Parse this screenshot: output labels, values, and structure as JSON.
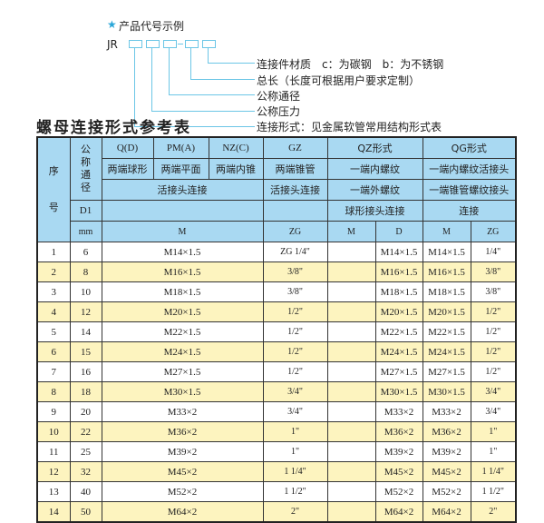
{
  "legend": {
    "star_icon": "star-icon",
    "heading": "产品代号示例",
    "prefix": "JR",
    "items": [
      "连接件材质　c：为碳钢　b：为不锈钢",
      "总长（长度可根据用户要求定制）",
      "公称通径",
      "公称压力",
      "连接形式：见金属软管常用结构形式表"
    ]
  },
  "title": "螺母连接形式参考表",
  "colors": {
    "header": "#a9d9f2",
    "row_alt": "#fdf4bf",
    "line": "#6cc6e6"
  },
  "header": {
    "seq": "序号",
    "nominal": "公称通径",
    "d1": "D1",
    "mm": "mm",
    "q": "Q(D)",
    "pm": "PM(A)",
    "nz": "NZ(C)",
    "gz": "GZ",
    "qz": "QZ形式",
    "qg": "QG形式",
    "q_desc": "两端球形",
    "pm_desc": "两端平面",
    "nz_desc": "两端内锥",
    "gz_desc": "两端锥管",
    "qz_desc": "一端内螺纹",
    "qg_desc": "一端内螺纹活接头",
    "live_conn": "活接头连接",
    "gz_conn": "活接头连接",
    "qz_ext": "一端外螺纹",
    "qg_taper": "一端锥管螺纹接头",
    "qz_ball": "球形接头连接",
    "qg_conn": "连接",
    "m": "M",
    "zg": "ZG",
    "qz_m": "M",
    "qz_d": "D",
    "qg_m": "M",
    "qg_zg": "ZG"
  },
  "rows": [
    {
      "no": "1",
      "dn": "6",
      "m": "M14×1.5",
      "gz": "ZG 1/4\"",
      "qz_m": "",
      "qz_d": "M14×1.5",
      "qg_m": "M14×1.5",
      "qg_zg": "1/4\""
    },
    {
      "no": "2",
      "dn": "8",
      "m": "M16×1.5",
      "gz": "3/8\"",
      "qz_m": "",
      "qz_d": "M16×1.5",
      "qg_m": "M16×1.5",
      "qg_zg": "3/8\""
    },
    {
      "no": "3",
      "dn": "10",
      "m": "M18×1.5",
      "gz": "3/8\"",
      "qz_m": "",
      "qz_d": "M18×1.5",
      "qg_m": "M18×1.5",
      "qg_zg": "3/8\""
    },
    {
      "no": "4",
      "dn": "12",
      "m": "M20×1.5",
      "gz": "1/2\"",
      "qz_m": "",
      "qz_d": "M20×1.5",
      "qg_m": "M20×1.5",
      "qg_zg": "1/2\""
    },
    {
      "no": "5",
      "dn": "14",
      "m": "M22×1.5",
      "gz": "1/2\"",
      "qz_m": "",
      "qz_d": "M22×1.5",
      "qg_m": "M22×1.5",
      "qg_zg": "1/2\""
    },
    {
      "no": "6",
      "dn": "15",
      "m": "M24×1.5",
      "gz": "1/2\"",
      "qz_m": "",
      "qz_d": "M24×1.5",
      "qg_m": "M24×1.5",
      "qg_zg": "1/2\""
    },
    {
      "no": "7",
      "dn": "16",
      "m": "M27×1.5",
      "gz": "1/2\"",
      "qz_m": "",
      "qz_d": "M27×1.5",
      "qg_m": "M27×1.5",
      "qg_zg": "1/2\""
    },
    {
      "no": "8",
      "dn": "18",
      "m": "M30×1.5",
      "gz": "3/4\"",
      "qz_m": "",
      "qz_d": "M30×1.5",
      "qg_m": "M30×1.5",
      "qg_zg": "3/4\""
    },
    {
      "no": "9",
      "dn": "20",
      "m": "M33×2",
      "gz": "3/4\"",
      "qz_m": "",
      "qz_d": "M33×2",
      "qg_m": "M33×2",
      "qg_zg": "3/4\""
    },
    {
      "no": "10",
      "dn": "22",
      "m": "M36×2",
      "gz": "1\"",
      "qz_m": "",
      "qz_d": "M36×2",
      "qg_m": "M36×2",
      "qg_zg": "1\""
    },
    {
      "no": "11",
      "dn": "25",
      "m": "M39×2",
      "gz": "1\"",
      "qz_m": "",
      "qz_d": "M39×2",
      "qg_m": "M39×2",
      "qg_zg": "1\""
    },
    {
      "no": "12",
      "dn": "32",
      "m": "M45×2",
      "gz": "1 1/4\"",
      "qz_m": "",
      "qz_d": "M45×2",
      "qg_m": "M45×2",
      "qg_zg": "1 1/4\""
    },
    {
      "no": "13",
      "dn": "40",
      "m": "M52×2",
      "gz": "1 1/2\"",
      "qz_m": "",
      "qz_d": "M52×2",
      "qg_m": "M52×2",
      "qg_zg": "1 1/2\""
    },
    {
      "no": "14",
      "dn": "50",
      "m": "M64×2",
      "gz": "2\"",
      "qz_m": "",
      "qz_d": "M64×2",
      "qg_m": "M64×2",
      "qg_zg": "2\""
    }
  ]
}
